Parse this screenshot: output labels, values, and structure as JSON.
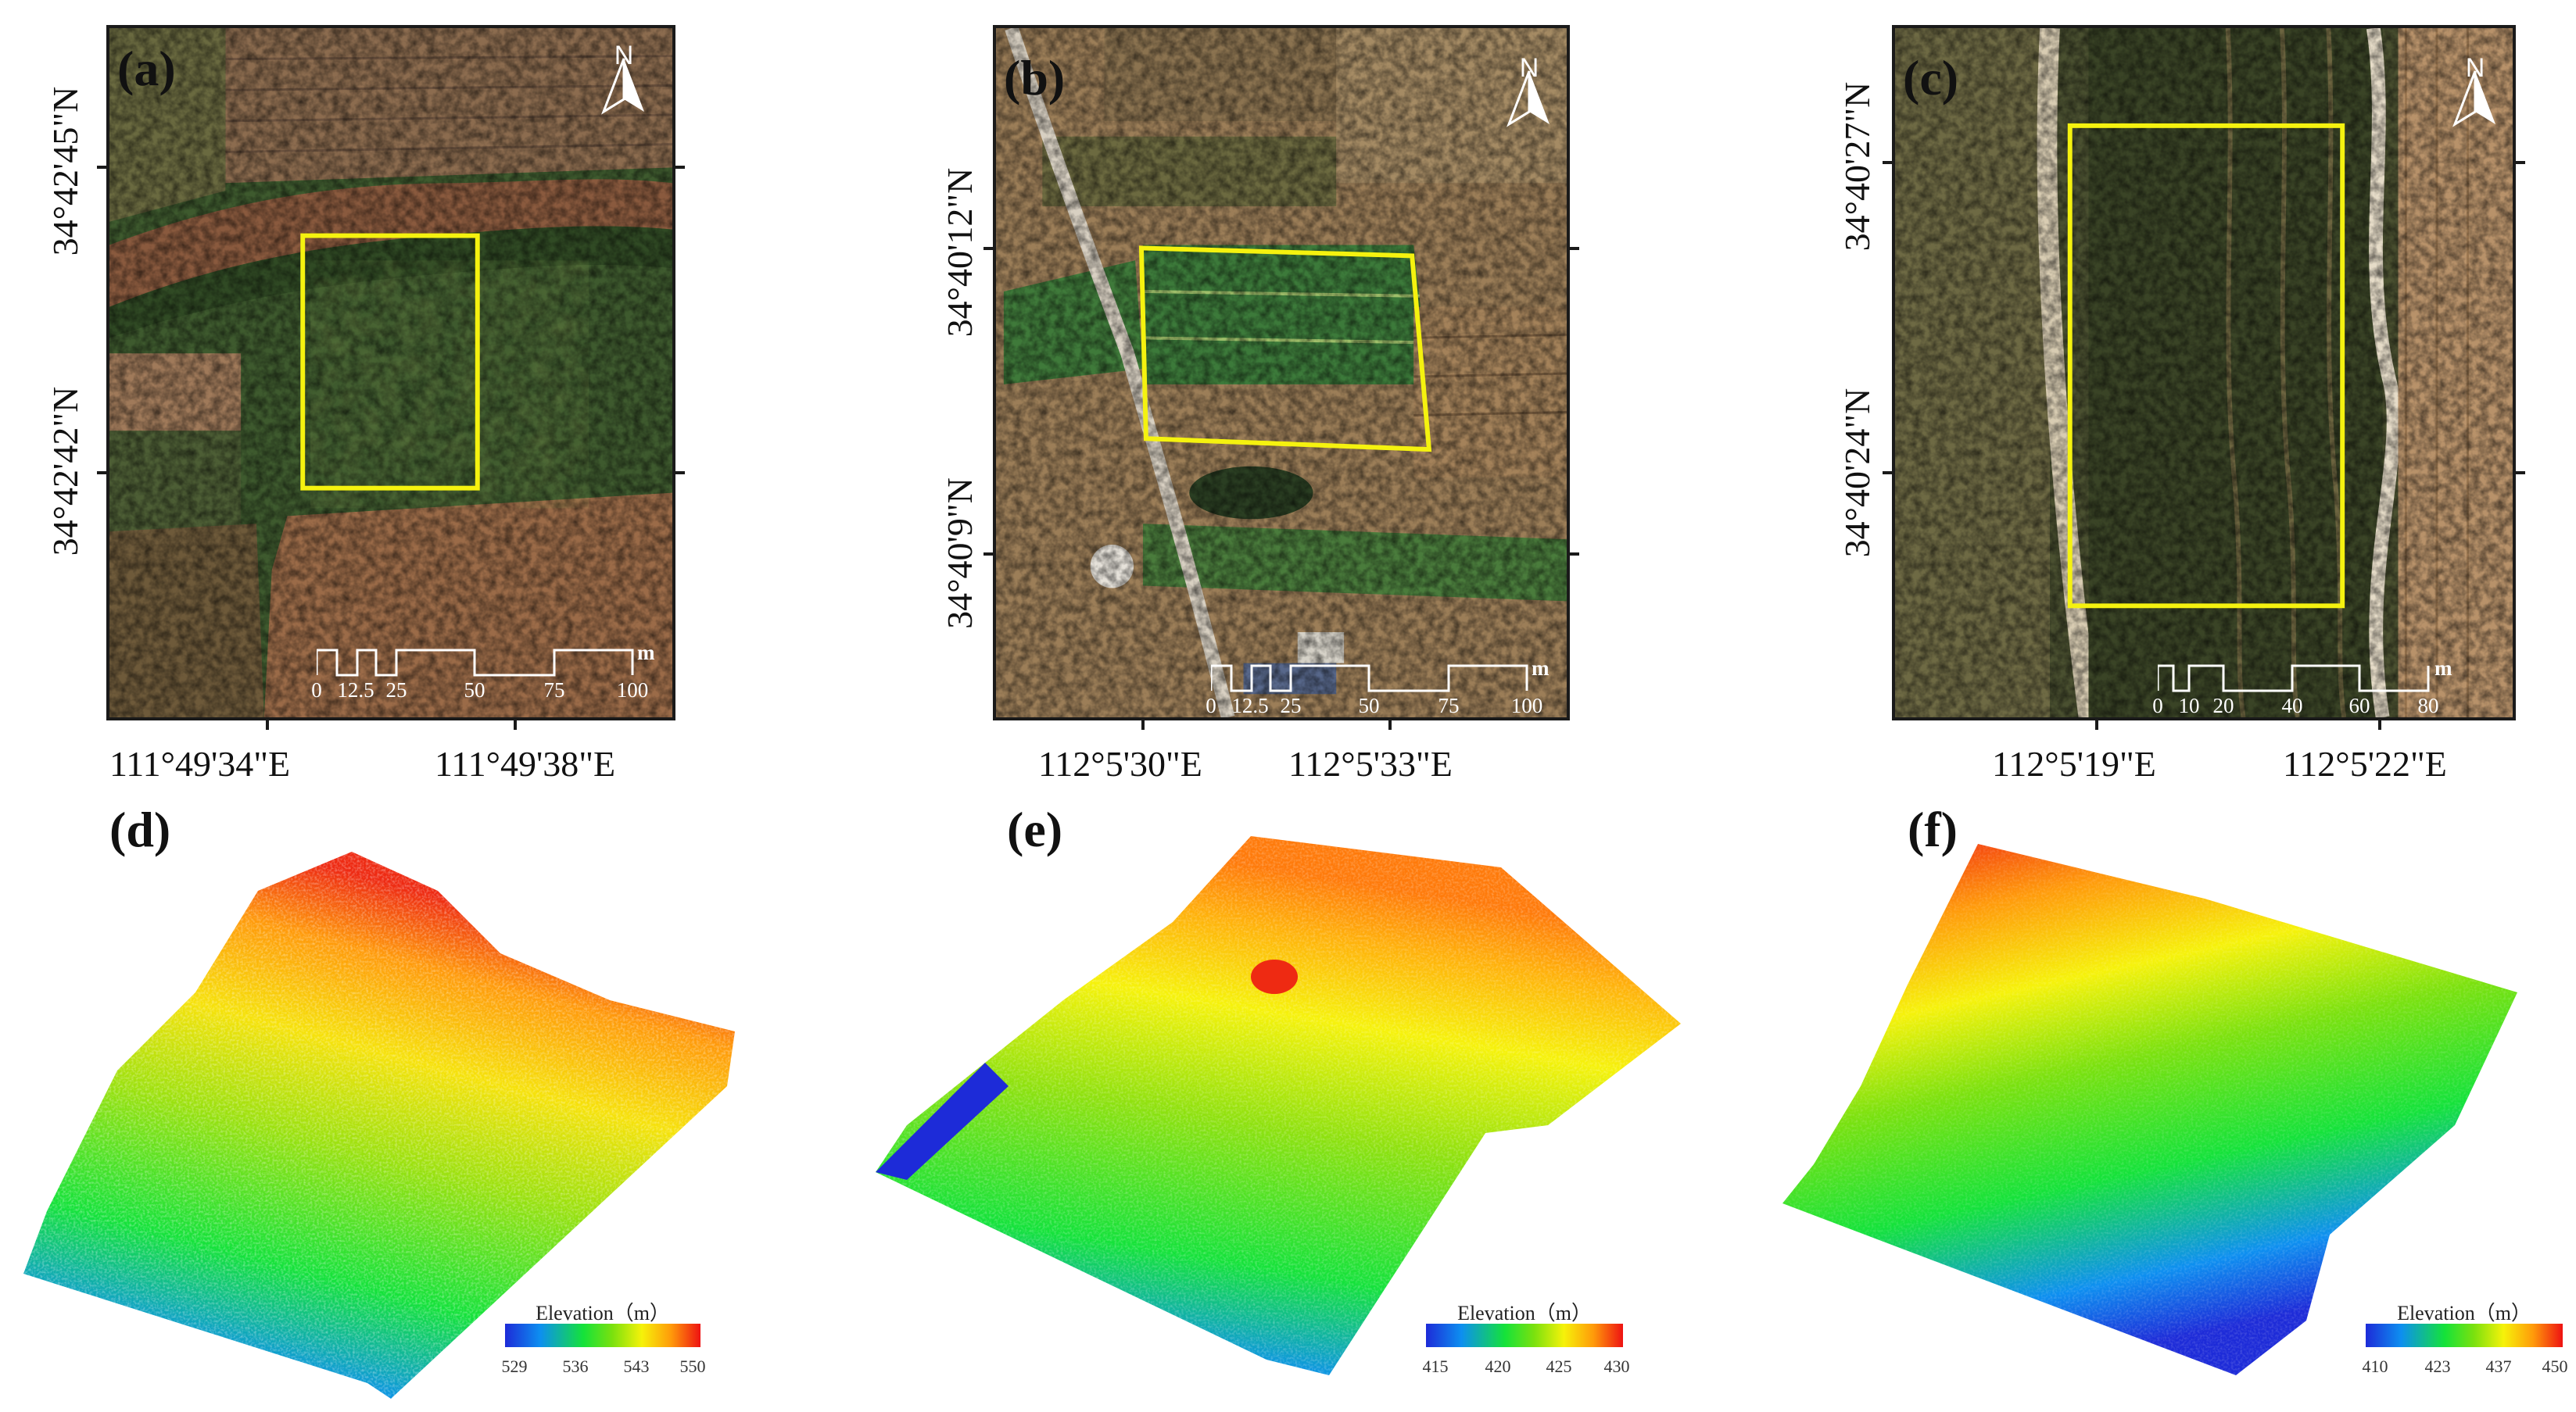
{
  "panels": {
    "a": {
      "label": "(a)",
      "north": "N",
      "lat_labels": [
        "34°42'45\"N",
        "34°42'42\"N"
      ],
      "lon_labels": [
        "111°49'34\"E",
        "111°49'38\"E"
      ],
      "scale": [
        "0",
        "12.5",
        "25",
        "50",
        "75",
        "100"
      ],
      "scale_unit": "m"
    },
    "b": {
      "label": "(b)",
      "north": "N",
      "lat_labels": [
        "34°40'12\"N",
        "34°40'9\"N"
      ],
      "lon_labels": [
        "112°5'30\"E",
        "112°5'33\"E"
      ],
      "scale": [
        "0",
        "12.5",
        "25",
        "50",
        "75",
        "100"
      ],
      "scale_unit": "m"
    },
    "c": {
      "label": "(c)",
      "north": "N",
      "lat_labels": [
        "34°40'27\"N",
        "34°40'24\"N"
      ],
      "lon_labels": [
        "112°5'19\"E",
        "112°5'22\"E"
      ],
      "scale": [
        "0",
        "10",
        "20",
        "40",
        "60",
        "80"
      ],
      "scale_unit": "m"
    },
    "d": {
      "label": "(d)",
      "legend_title": "Elevation（m）",
      "ticks": [
        "529",
        "536",
        "543",
        "550"
      ]
    },
    "e": {
      "label": "(e)",
      "legend_title": "Elevation（m）",
      "ticks": [
        "415",
        "420",
        "425",
        "430"
      ]
    },
    "f": {
      "label": "(f)",
      "legend_title": "Elevation（m）",
      "ticks": [
        "410",
        "423",
        "437",
        "450"
      ]
    }
  },
  "colors": {
    "aoi_outline": "#f5f20f",
    "frame": "#1a1a1a",
    "ramp": [
      "#1d2bd8",
      "#0d8ff0",
      "#14e23a",
      "#7be10e",
      "#f6f20a",
      "#ff9a0a",
      "#ee1212"
    ]
  },
  "icons": {
    "north_arrow": "north-arrow-icon"
  }
}
